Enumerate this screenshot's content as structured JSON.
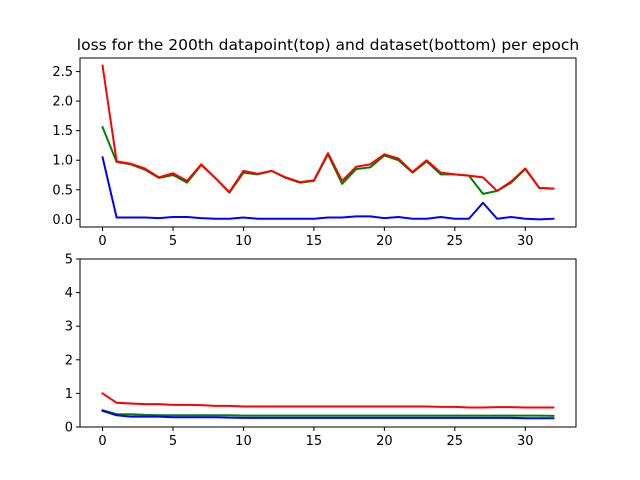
{
  "chart_data": [
    {
      "type": "line",
      "title": "loss for the 200th datapoint(top) and dataset(bottom) per epoch",
      "xlabel": "",
      "ylabel": "",
      "x": [
        0,
        1,
        2,
        3,
        4,
        5,
        6,
        7,
        8,
        9,
        10,
        11,
        12,
        13,
        14,
        15,
        16,
        17,
        18,
        19,
        20,
        21,
        22,
        23,
        24,
        25,
        26,
        27,
        28,
        29,
        30,
        31,
        32
      ],
      "xlim": [
        -1.6,
        33.6
      ],
      "ylim": [
        -0.13,
        2.73
      ],
      "xticks": [
        0,
        5,
        10,
        15,
        20,
        25,
        30
      ],
      "yticks": [
        0.0,
        0.5,
        1.0,
        1.5,
        2.0,
        2.5
      ],
      "ytick_labels": [
        "0.0",
        "0.5",
        "1.0",
        "1.5",
        "2.0",
        "2.5"
      ],
      "grid": false,
      "series": [
        {
          "color": "#008000",
          "values": [
            1.56,
            0.97,
            0.93,
            0.84,
            0.7,
            0.75,
            0.62,
            0.92,
            0.7,
            0.45,
            0.79,
            0.76,
            0.82,
            0.7,
            0.62,
            0.65,
            1.1,
            0.6,
            0.85,
            0.88,
            1.08,
            1.0,
            0.79,
            0.98,
            0.76,
            0.76,
            0.74,
            0.43,
            0.48,
            0.62,
            0.85,
            0.53,
            0.52
          ]
        },
        {
          "color": "#0000ff",
          "values": [
            1.05,
            0.03,
            0.03,
            0.03,
            0.02,
            0.04,
            0.04,
            0.02,
            0.01,
            0.01,
            0.03,
            0.01,
            0.01,
            0.01,
            0.01,
            0.01,
            0.03,
            0.03,
            0.05,
            0.05,
            0.02,
            0.04,
            0.01,
            0.01,
            0.04,
            0.01,
            0.01,
            0.28,
            0.01,
            0.04,
            0.01,
            0.0,
            0.01
          ]
        },
        {
          "color": "#ff0000",
          "values": [
            2.6,
            0.98,
            0.94,
            0.86,
            0.71,
            0.78,
            0.65,
            0.93,
            0.7,
            0.46,
            0.82,
            0.77,
            0.82,
            0.71,
            0.63,
            0.66,
            1.12,
            0.65,
            0.89,
            0.93,
            1.1,
            1.03,
            0.8,
            1.0,
            0.79,
            0.76,
            0.74,
            0.71,
            0.48,
            0.64,
            0.86,
            0.53,
            0.52
          ]
        }
      ]
    },
    {
      "type": "line",
      "title": "",
      "xlabel": "",
      "ylabel": "",
      "x": [
        0,
        1,
        2,
        3,
        4,
        5,
        6,
        7,
        8,
        9,
        10,
        11,
        12,
        13,
        14,
        15,
        16,
        17,
        18,
        19,
        20,
        21,
        22,
        23,
        24,
        25,
        26,
        27,
        28,
        29,
        30,
        31,
        32
      ],
      "xlim": [
        -1.6,
        33.6
      ],
      "ylim": [
        0,
        5
      ],
      "xticks": [
        0,
        5,
        10,
        15,
        20,
        25,
        30
      ],
      "yticks": [
        0,
        1,
        2,
        3,
        4,
        5
      ],
      "ytick_labels": [
        "0",
        "1",
        "2",
        "3",
        "4",
        "5"
      ],
      "grid": false,
      "series": [
        {
          "color": "#008000",
          "values": [
            0.5,
            0.38,
            0.38,
            0.36,
            0.35,
            0.35,
            0.35,
            0.35,
            0.35,
            0.35,
            0.34,
            0.34,
            0.34,
            0.34,
            0.34,
            0.34,
            0.34,
            0.34,
            0.34,
            0.34,
            0.34,
            0.34,
            0.34,
            0.34,
            0.34,
            0.34,
            0.34,
            0.34,
            0.34,
            0.34,
            0.34,
            0.34,
            0.33
          ]
        },
        {
          "color": "#0000ff",
          "values": [
            0.48,
            0.35,
            0.31,
            0.31,
            0.31,
            0.29,
            0.29,
            0.29,
            0.29,
            0.28,
            0.27,
            0.27,
            0.27,
            0.27,
            0.27,
            0.27,
            0.27,
            0.27,
            0.27,
            0.27,
            0.27,
            0.27,
            0.27,
            0.27,
            0.27,
            0.27,
            0.27,
            0.27,
            0.27,
            0.27,
            0.26,
            0.26,
            0.26
          ]
        },
        {
          "color": "#ff0000",
          "values": [
            1.0,
            0.72,
            0.7,
            0.68,
            0.68,
            0.66,
            0.66,
            0.65,
            0.63,
            0.63,
            0.61,
            0.61,
            0.61,
            0.61,
            0.61,
            0.61,
            0.61,
            0.61,
            0.61,
            0.61,
            0.61,
            0.61,
            0.61,
            0.61,
            0.6,
            0.6,
            0.58,
            0.58,
            0.59,
            0.59,
            0.58,
            0.58,
            0.58
          ]
        }
      ]
    }
  ]
}
